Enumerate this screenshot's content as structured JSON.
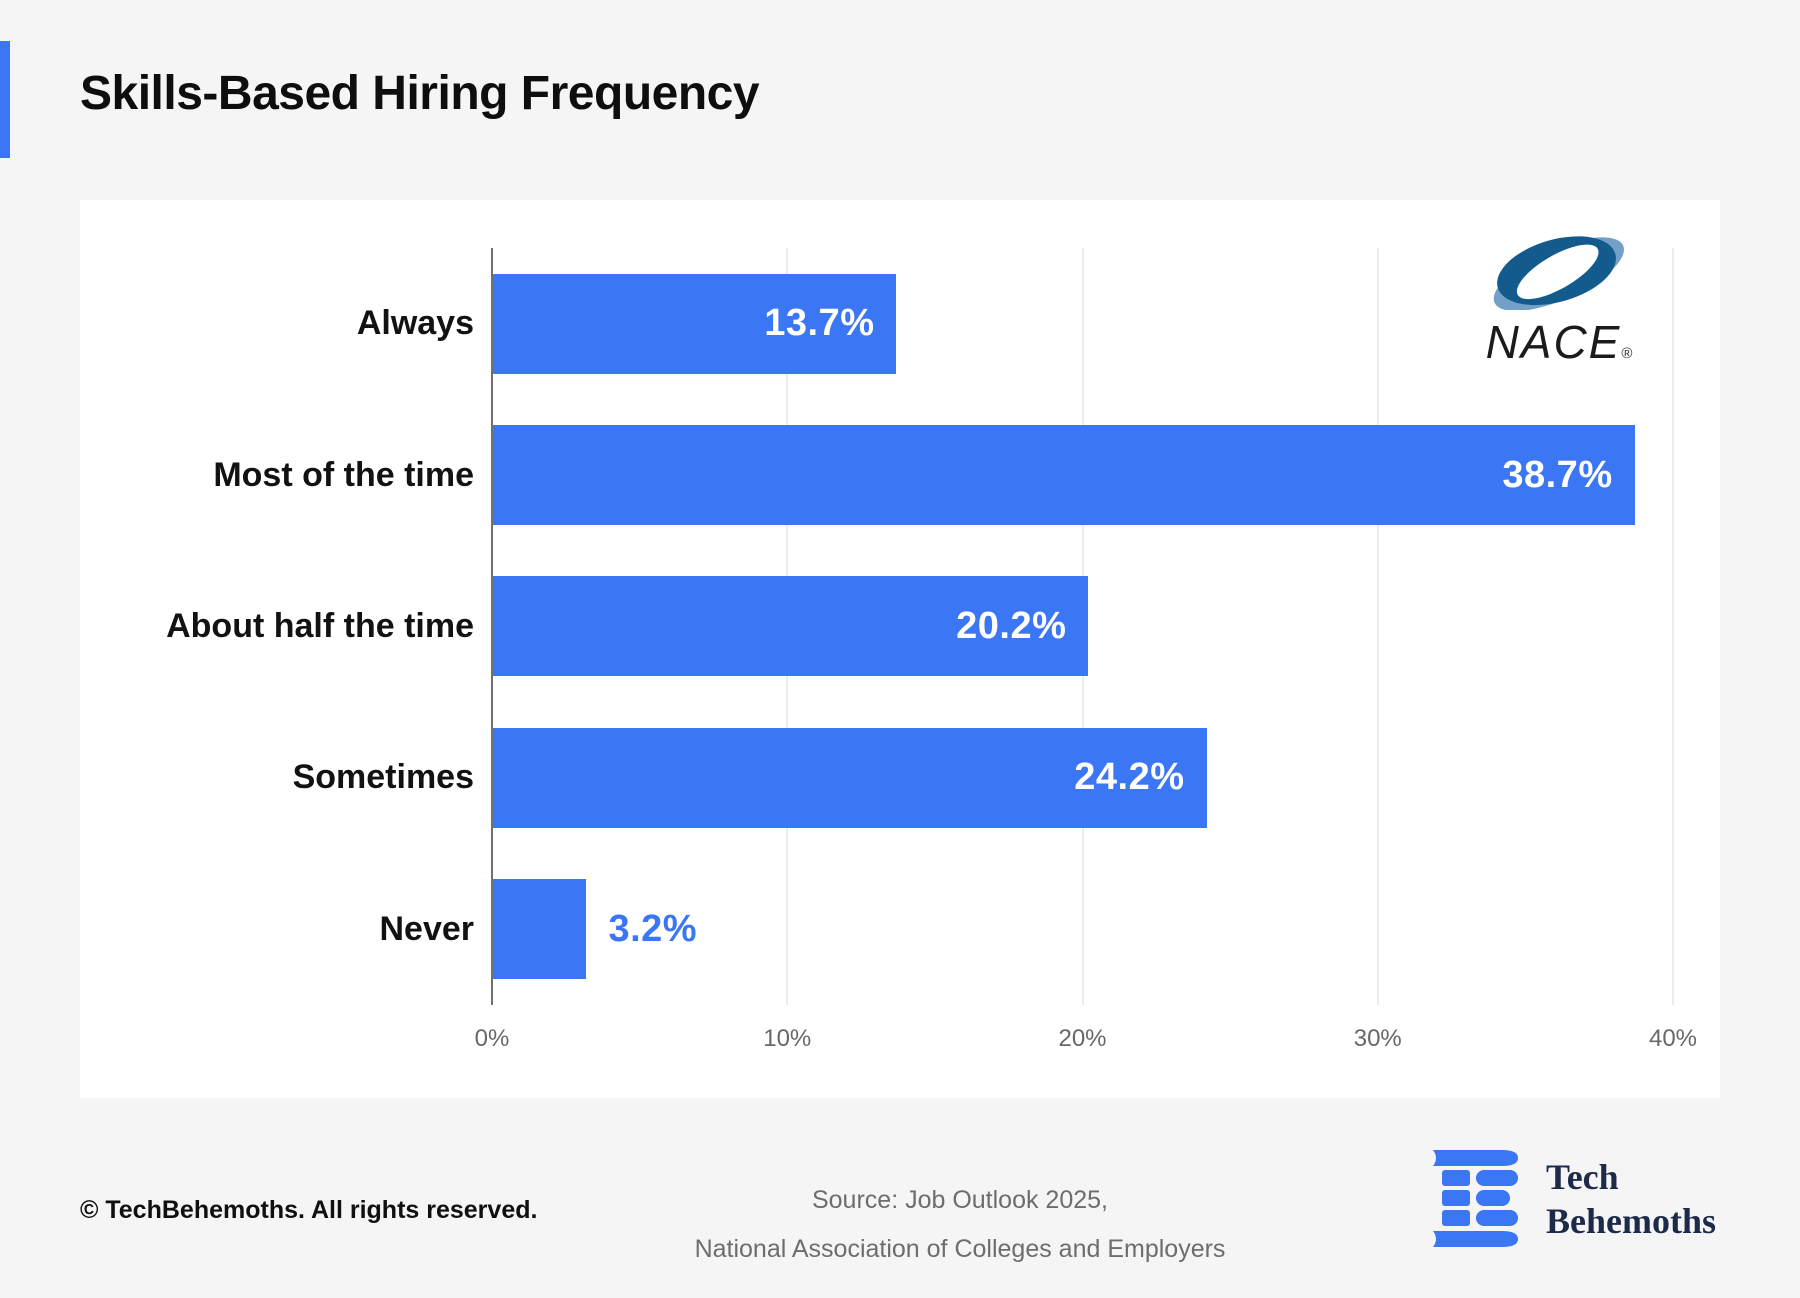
{
  "page": {
    "background": "#f5f5f6",
    "accent": "#3b76f4"
  },
  "header": {
    "title": "Skills-Based Hiring Frequency"
  },
  "chart_data": {
    "type": "bar",
    "orientation": "horizontal",
    "title": "Skills-Based Hiring Frequency",
    "categories": [
      "Always",
      "Most of the time",
      "About half the time",
      "Sometimes",
      "Never"
    ],
    "values": [
      13.7,
      38.7,
      20.2,
      24.2,
      3.2
    ],
    "value_labels": [
      "13.7%",
      "38.7%",
      "20.2%",
      "24.2%",
      "3.2%"
    ],
    "xlim": [
      0,
      40
    ],
    "x_ticks": [
      "0%",
      "10%",
      "20%",
      "30%",
      "40%"
    ],
    "bar_color": "#3b76f4",
    "value_label_inside_color": "#ffffff",
    "value_label_outside_color": "#3b76f4",
    "grid": "vertical gridlines every 10%",
    "legend": "none"
  },
  "nace_logo": {
    "text": "NACE",
    "registered": "®",
    "dark_blue": "#135b8d",
    "light_blue": "#72a0c6"
  },
  "footer": {
    "copyright": "© TechBehemoths. All rights reserved.",
    "source_line1": "Source: Job Outlook 2025,",
    "source_line2": "National Association of Colleges and Employers",
    "brand_line1": "Tech",
    "brand_line2": "Behemoths",
    "brand_color": "#1e2a4a"
  }
}
